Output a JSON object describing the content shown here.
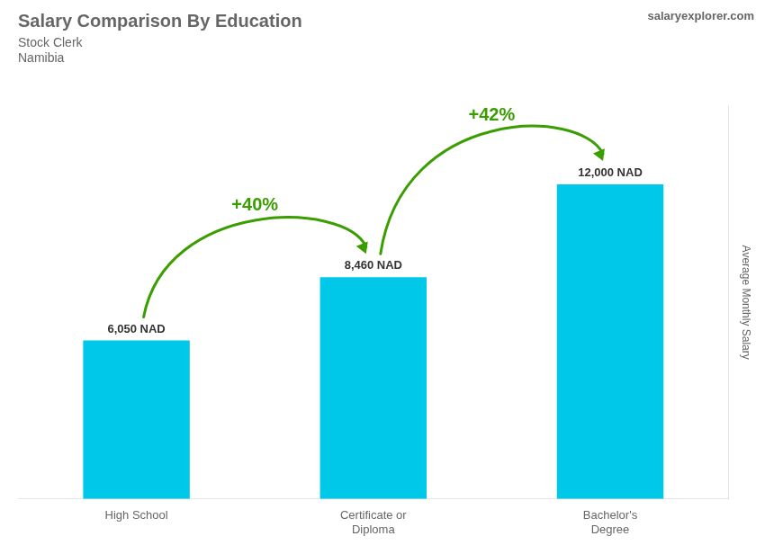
{
  "chart_data": {
    "type": "bar",
    "title": "Salary Comparison By Education",
    "subtitle": [
      "Stock Clerk",
      "Namibia"
    ],
    "source": "salaryexplorer.com",
    "ylabel": "Average Monthly Salary",
    "categories": [
      "High School",
      "Certificate or\nDiploma",
      "Bachelor's\nDegree"
    ],
    "values": [
      6050,
      8460,
      12000
    ],
    "value_labels": [
      "6,050 NAD",
      "8,460 NAD",
      "12,000 NAD"
    ],
    "data_labels": true,
    "annotations": [
      "+40%",
      "+42%"
    ],
    "color": "#00c8e8",
    "ylim": [
      0,
      15000
    ],
    "grid": false,
    "tick_labels": "x"
  }
}
